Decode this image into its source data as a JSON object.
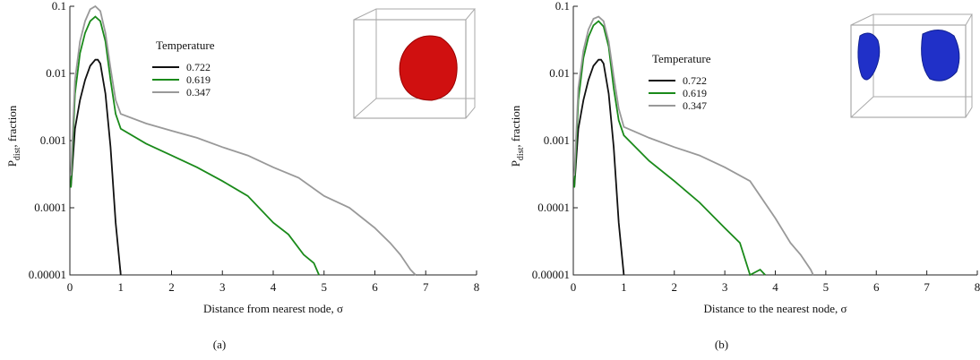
{
  "chart_data": [
    {
      "type": "line",
      "panel_label": "(a)",
      "xlabel": "Distance from nearest node, σ",
      "ylabel": "P",
      "ylabel_sub": "dist",
      "ylabel_rest": ", fraction",
      "xlim": [
        0,
        8
      ],
      "xticks": [
        0,
        1,
        2,
        3,
        4,
        5,
        6,
        7,
        8
      ],
      "ylim": [
        1e-05,
        0.1
      ],
      "yticks": [
        0.1,
        0.01,
        0.001,
        0.0001,
        1e-05
      ],
      "log_y": true,
      "legend_title": "Temperature",
      "series": [
        {
          "name": "0.722",
          "color": "#111111",
          "x": [
            0.02,
            0.1,
            0.2,
            0.3,
            0.4,
            0.5,
            0.55,
            0.6,
            0.7,
            0.8,
            0.9,
            1.0
          ],
          "values": [
            0.0002,
            0.0015,
            0.004,
            0.008,
            0.013,
            0.016,
            0.016,
            0.014,
            0.005,
            0.0008,
            6e-05,
            1e-05
          ]
        },
        {
          "name": "0.619",
          "color": "#1a8a1a",
          "x": [
            0.02,
            0.1,
            0.2,
            0.3,
            0.4,
            0.5,
            0.6,
            0.7,
            0.8,
            0.9,
            1.0,
            1.5,
            2,
            2.5,
            3,
            3.5,
            4,
            4.3,
            4.6,
            4.8,
            4.9
          ],
          "values": [
            0.0002,
            0.005,
            0.02,
            0.04,
            0.06,
            0.07,
            0.06,
            0.03,
            0.008,
            0.0025,
            0.0015,
            0.0009,
            0.0006,
            0.0004,
            0.00025,
            0.00015,
            6e-05,
            4e-05,
            2e-05,
            1.5e-05,
            1e-05
          ]
        },
        {
          "name": "0.347",
          "color": "#999999",
          "x": [
            0.02,
            0.1,
            0.2,
            0.3,
            0.4,
            0.5,
            0.6,
            0.7,
            0.8,
            0.9,
            1.0,
            1.5,
            2,
            2.5,
            3,
            3.5,
            4,
            4.5,
            5,
            5.5,
            6,
            6.3,
            6.5,
            6.7,
            6.8
          ],
          "values": [
            0.0003,
            0.008,
            0.03,
            0.06,
            0.09,
            0.1,
            0.085,
            0.04,
            0.012,
            0.004,
            0.0025,
            0.0018,
            0.0014,
            0.0011,
            0.0008,
            0.0006,
            0.0004,
            0.00028,
            0.00015,
            0.0001,
            5e-05,
            3e-05,
            2e-05,
            1.2e-05,
            1e-05
          ]
        }
      ]
    },
    {
      "type": "line",
      "panel_label": "(b)",
      "xlabel": "Distance to the nearest node, σ",
      "ylabel": "P",
      "ylabel_sub": "dist",
      "ylabel_rest": ", fraction",
      "xlim": [
        0,
        8
      ],
      "xticks": [
        0,
        1,
        2,
        3,
        4,
        5,
        6,
        7,
        8
      ],
      "ylim": [
        1e-05,
        0.1
      ],
      "yticks": [
        0.1,
        0.01,
        0.001,
        0.0001,
        1e-05
      ],
      "log_y": true,
      "legend_title": "Temperature",
      "series": [
        {
          "name": "0.722",
          "color": "#111111",
          "x": [
            0.02,
            0.1,
            0.2,
            0.3,
            0.4,
            0.5,
            0.55,
            0.6,
            0.7,
            0.8,
            0.9,
            1.0
          ],
          "values": [
            0.0002,
            0.0015,
            0.004,
            0.008,
            0.013,
            0.016,
            0.016,
            0.014,
            0.005,
            0.0008,
            6e-05,
            1e-05
          ]
        },
        {
          "name": "0.619",
          "color": "#1a8a1a",
          "x": [
            0.02,
            0.1,
            0.2,
            0.3,
            0.4,
            0.5,
            0.6,
            0.7,
            0.8,
            0.9,
            1.0,
            1.5,
            2,
            2.5,
            3,
            3.3,
            3.5,
            3.7,
            3.8
          ],
          "values": [
            0.0002,
            0.004,
            0.017,
            0.035,
            0.052,
            0.06,
            0.05,
            0.025,
            0.006,
            0.002,
            0.0012,
            0.0005,
            0.00025,
            0.00012,
            5e-05,
            3e-05,
            1e-05,
            1.2e-05,
            1e-05
          ]
        },
        {
          "name": "0.347",
          "color": "#999999",
          "x": [
            0.02,
            0.1,
            0.2,
            0.3,
            0.4,
            0.5,
            0.6,
            0.7,
            0.8,
            0.9,
            1.0,
            1.5,
            2,
            2.5,
            3,
            3.5,
            4,
            4.3,
            4.5,
            4.7,
            4.75
          ],
          "values": [
            0.0003,
            0.006,
            0.022,
            0.045,
            0.065,
            0.07,
            0.06,
            0.03,
            0.009,
            0.003,
            0.0016,
            0.0011,
            0.0008,
            0.0006,
            0.0004,
            0.00025,
            7e-05,
            3e-05,
            2e-05,
            1.2e-05,
            1e-05
          ]
        }
      ]
    }
  ]
}
